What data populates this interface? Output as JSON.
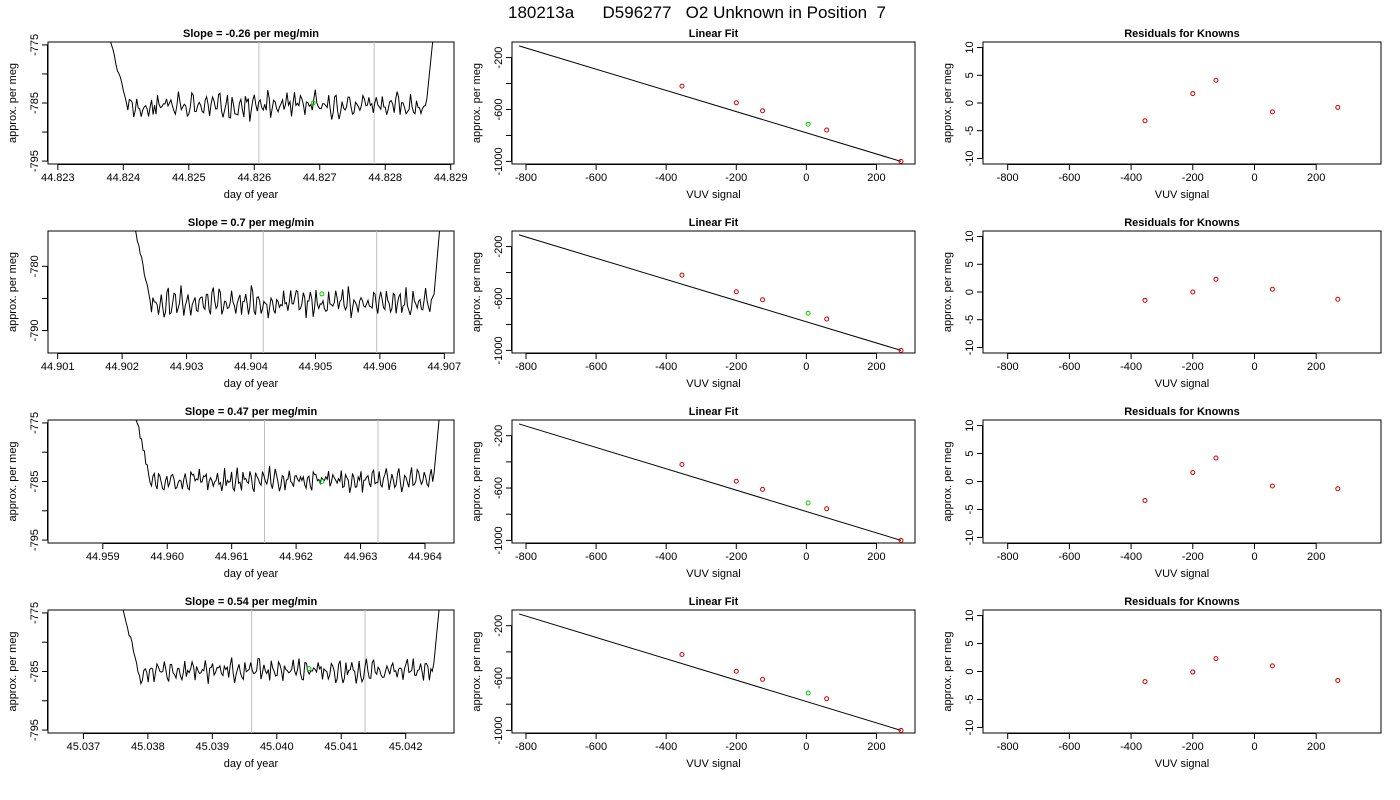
{
  "figure": {
    "title": "180213a      D596277   O2 Unknown in Position  7"
  },
  "colors": {
    "trace": "#000000",
    "marker_green": "#00cc00",
    "marker_red": "#cc0000",
    "vline": "#bebebe",
    "fitline": "#000000"
  },
  "chart_data": [
    {
      "type": "line",
      "row": 0,
      "col": 0,
      "title": "Slope =  -0.26  per meg/min",
      "xlabel": "day of year",
      "ylabel": "approx. per meg",
      "xlim": [
        44.82285,
        44.82905
      ],
      "ylim": [
        -795.5,
        -774.5
      ],
      "xticks": [
        44.823,
        44.824,
        44.825,
        44.826,
        44.827,
        44.828,
        44.829
      ],
      "xtick_labels": [
        "44.823",
        "44.824",
        "44.825",
        "44.826",
        "44.827",
        "44.828",
        "44.829"
      ],
      "yticks": [
        -795,
        -790,
        -785,
        -780,
        -775
      ],
      "ytick_labels": [
        "-795",
        "",
        "-785",
        "",
        "-775"
      ],
      "trace_start": 44.82375,
      "trace_end": 44.82875,
      "trace_mean": -785.5,
      "trace_amp": 2.4,
      "seed": 11,
      "vlines": [
        44.82607,
        44.82783
      ],
      "green_point": [
        44.8269,
        -785.0
      ]
    },
    {
      "type": "scatter",
      "row": 0,
      "col": 1,
      "title": "Linear Fit",
      "xlabel": "VUV signal",
      "ylabel": "approx. per meg",
      "xlim": [
        -840,
        310
      ],
      "ylim": [
        -1020,
        -80
      ],
      "xticks": [
        -800,
        -600,
        -400,
        -200,
        0,
        200
      ],
      "xtick_labels": [
        "-800",
        "-600",
        "-400",
        "-200",
        "0",
        "200"
      ],
      "yticks": [
        -1000,
        -800,
        -600,
        -400,
        -200
      ],
      "ytick_labels": [
        "-1000",
        "",
        "-600",
        "",
        "-200"
      ],
      "fit_line": [
        [
          -820,
          -110
        ],
        [
          270,
          -1000
        ]
      ],
      "red_points": [
        [
          -355,
          -420
        ],
        [
          -200,
          -548
        ],
        [
          -125,
          -610
        ],
        [
          58,
          -758
        ],
        [
          270,
          -1000
        ]
      ],
      "green_point": [
        5,
        -714
      ]
    },
    {
      "type": "scatter",
      "row": 0,
      "col": 2,
      "title": "Residuals for Knowns",
      "xlabel": "VUV signal",
      "ylabel": "approx. per meg",
      "xlim": [
        -880,
        410
      ],
      "ylim": [
        -11,
        11
      ],
      "xticks": [
        -800,
        -600,
        -400,
        -200,
        0,
        200
      ],
      "xtick_labels": [
        "-800",
        "-600",
        "-400",
        "-200",
        "0",
        "200"
      ],
      "yticks": [
        -10,
        -5,
        0,
        5,
        10
      ],
      "ytick_labels": [
        "-10",
        "-5",
        "0",
        "5",
        "10"
      ],
      "red_points": [
        [
          -355,
          -3.2
        ],
        [
          -200,
          1.7
        ],
        [
          -125,
          4.1
        ],
        [
          58,
          -1.6
        ],
        [
          270,
          -0.8
        ]
      ]
    },
    {
      "type": "line",
      "row": 1,
      "col": 0,
      "title": "Slope =  0.7  per meg/min",
      "xlabel": "day of year",
      "ylabel": "approx. per meg",
      "xlim": [
        44.90085,
        44.90715
      ],
      "ylim": [
        -793.5,
        -774.5
      ],
      "xticks": [
        44.901,
        44.902,
        44.903,
        44.904,
        44.905,
        44.906,
        44.907
      ],
      "xtick_labels": [
        "44.901",
        "44.902",
        "44.903",
        "44.904",
        "44.905",
        "44.906",
        "44.907"
      ],
      "yticks": [
        -790,
        -785,
        -780
      ],
      "ytick_labels": [
        "-790",
        "",
        "-780"
      ],
      "trace_start": 44.90215,
      "trace_end": 44.90695,
      "trace_mean": -785.6,
      "trace_amp": 2.2,
      "seed": 23,
      "vlines": [
        44.90419,
        44.90595
      ],
      "green_point": [
        44.9051,
        -784.3
      ]
    },
    {
      "type": "scatter",
      "row": 1,
      "col": 1,
      "title": "Linear Fit",
      "xlabel": "VUV signal",
      "ylabel": "approx. per meg",
      "xlim": [
        -840,
        310
      ],
      "ylim": [
        -1020,
        -80
      ],
      "xticks": [
        -800,
        -600,
        -400,
        -200,
        0,
        200
      ],
      "xtick_labels": [
        "-800",
        "-600",
        "-400",
        "-200",
        "0",
        "200"
      ],
      "yticks": [
        -1000,
        -800,
        -600,
        -400,
        -200
      ],
      "ytick_labels": [
        "-1000",
        "",
        "-600",
        "",
        "-200"
      ],
      "fit_line": [
        [
          -820,
          -110
        ],
        [
          270,
          -1000
        ]
      ],
      "red_points": [
        [
          -355,
          -420
        ],
        [
          -200,
          -548
        ],
        [
          -125,
          -610
        ],
        [
          58,
          -758
        ],
        [
          270,
          -1000
        ]
      ],
      "green_point": [
        5,
        -714
      ]
    },
    {
      "type": "scatter",
      "row": 1,
      "col": 2,
      "title": "Residuals for Knowns",
      "xlabel": "VUV signal",
      "ylabel": "approx. per meg",
      "xlim": [
        -880,
        410
      ],
      "ylim": [
        -11,
        11
      ],
      "xticks": [
        -800,
        -600,
        -400,
        -200,
        0,
        200
      ],
      "xtick_labels": [
        "-800",
        "-600",
        "-400",
        "-200",
        "0",
        "200"
      ],
      "yticks": [
        -10,
        -5,
        0,
        5,
        10
      ],
      "ytick_labels": [
        "-10",
        "-5",
        "0",
        "5",
        "10"
      ],
      "red_points": [
        [
          -355,
          -1.5
        ],
        [
          -200,
          0.0
        ],
        [
          -125,
          2.3
        ],
        [
          58,
          0.5
        ],
        [
          270,
          -1.3
        ]
      ]
    },
    {
      "type": "line",
      "row": 2,
      "col": 0,
      "title": "Slope =  0.47  per meg/min",
      "xlabel": "day of year",
      "ylabel": "approx. per meg",
      "xlim": [
        44.95815,
        44.96445
      ],
      "ylim": [
        -795.5,
        -774.5
      ],
      "xticks": [
        44.959,
        44.96,
        44.961,
        44.962,
        44.963,
        44.964
      ],
      "xtick_labels": [
        "44.959",
        "44.960",
        "44.961",
        "44.962",
        "44.963",
        "44.964"
      ],
      "yticks": [
        -795,
        -790,
        -785,
        -780,
        -775
      ],
      "ytick_labels": [
        "-795",
        "",
        "-785",
        "",
        "-775"
      ],
      "trace_start": 44.95945,
      "trace_end": 44.96425,
      "trace_mean": -784.8,
      "trace_amp": 2.0,
      "seed": 37,
      "vlines": [
        44.96151,
        44.96327
      ],
      "green_point": [
        44.9624,
        -785.0
      ]
    },
    {
      "type": "scatter",
      "row": 2,
      "col": 1,
      "title": "Linear Fit",
      "xlabel": "VUV signal",
      "ylabel": "approx. per meg",
      "xlim": [
        -840,
        310
      ],
      "ylim": [
        -1020,
        -80
      ],
      "xticks": [
        -800,
        -600,
        -400,
        -200,
        0,
        200
      ],
      "xtick_labels": [
        "-800",
        "-600",
        "-400",
        "-200",
        "0",
        "200"
      ],
      "yticks": [
        -1000,
        -800,
        -600,
        -400,
        -200
      ],
      "ytick_labels": [
        "-1000",
        "",
        "-600",
        "",
        "-200"
      ],
      "fit_line": [
        [
          -820,
          -110
        ],
        [
          270,
          -1000
        ]
      ],
      "red_points": [
        [
          -355,
          -420
        ],
        [
          -200,
          -548
        ],
        [
          -125,
          -610
        ],
        [
          58,
          -758
        ],
        [
          270,
          -1000
        ]
      ],
      "green_point": [
        5,
        -714
      ]
    },
    {
      "type": "scatter",
      "row": 2,
      "col": 2,
      "title": "Residuals for Knowns",
      "xlabel": "VUV signal",
      "ylabel": "approx. per meg",
      "xlim": [
        -880,
        410
      ],
      "ylim": [
        -11,
        11
      ],
      "xticks": [
        -800,
        -600,
        -400,
        -200,
        0,
        200
      ],
      "xtick_labels": [
        "-800",
        "-600",
        "-400",
        "-200",
        "0",
        "200"
      ],
      "yticks": [
        -10,
        -5,
        0,
        5,
        10
      ],
      "ytick_labels": [
        "-10",
        "-5",
        "0",
        "5",
        "10"
      ],
      "red_points": [
        [
          -355,
          -3.4
        ],
        [
          -200,
          1.6
        ],
        [
          -125,
          4.2
        ],
        [
          58,
          -0.8
        ],
        [
          270,
          -1.3
        ]
      ]
    },
    {
      "type": "line",
      "row": 3,
      "col": 0,
      "title": "Slope =  0.54  per meg/min",
      "xlabel": "day of year",
      "ylabel": "approx. per meg",
      "xlim": [
        45.03645,
        45.04275
      ],
      "ylim": [
        -795.5,
        -774.5
      ],
      "xticks": [
        45.037,
        45.038,
        45.039,
        45.04,
        45.041,
        45.042
      ],
      "xtick_labels": [
        "45.037",
        "45.038",
        "45.039",
        "45.040",
        "45.041",
        "45.042"
      ],
      "yticks": [
        -795,
        -790,
        -785,
        -780,
        -775
      ],
      "ytick_labels": [
        "-795",
        "",
        "-785",
        "",
        "-775"
      ],
      "trace_start": 45.03755,
      "trace_end": 45.04255,
      "trace_mean": -784.9,
      "trace_amp": 2.1,
      "seed": 53,
      "vlines": [
        45.03961,
        45.04137
      ],
      "green_point": [
        45.0405,
        -784.5
      ]
    },
    {
      "type": "scatter",
      "row": 3,
      "col": 1,
      "title": "Linear Fit",
      "xlabel": "VUV signal",
      "ylabel": "approx. per meg",
      "xlim": [
        -840,
        310
      ],
      "ylim": [
        -1020,
        -80
      ],
      "xticks": [
        -800,
        -600,
        -400,
        -200,
        0,
        200
      ],
      "xtick_labels": [
        "-800",
        "-600",
        "-400",
        "-200",
        "0",
        "200"
      ],
      "yticks": [
        -1000,
        -800,
        -600,
        -400,
        -200
      ],
      "ytick_labels": [
        "-1000",
        "",
        "-600",
        "",
        "-200"
      ],
      "fit_line": [
        [
          -820,
          -110
        ],
        [
          270,
          -1000
        ]
      ],
      "red_points": [
        [
          -355,
          -420
        ],
        [
          -200,
          -548
        ],
        [
          -125,
          -610
        ],
        [
          58,
          -758
        ],
        [
          270,
          -1000
        ]
      ],
      "green_point": [
        5,
        -714
      ]
    },
    {
      "type": "scatter",
      "row": 3,
      "col": 2,
      "title": "Residuals for Knowns",
      "xlabel": "VUV signal",
      "ylabel": "approx. per meg",
      "xlim": [
        -880,
        410
      ],
      "ylim": [
        -11,
        11
      ],
      "xticks": [
        -800,
        -600,
        -400,
        -200,
        0,
        200
      ],
      "xtick_labels": [
        "-800",
        "-600",
        "-400",
        "-200",
        "0",
        "200"
      ],
      "yticks": [
        -10,
        -5,
        0,
        5,
        10
      ],
      "ytick_labels": [
        "-10",
        "-5",
        "0",
        "5",
        "10"
      ],
      "red_points": [
        [
          -355,
          -1.8
        ],
        [
          -200,
          -0.1
        ],
        [
          -125,
          2.3
        ],
        [
          58,
          1.0
        ],
        [
          270,
          -1.6
        ]
      ]
    }
  ]
}
